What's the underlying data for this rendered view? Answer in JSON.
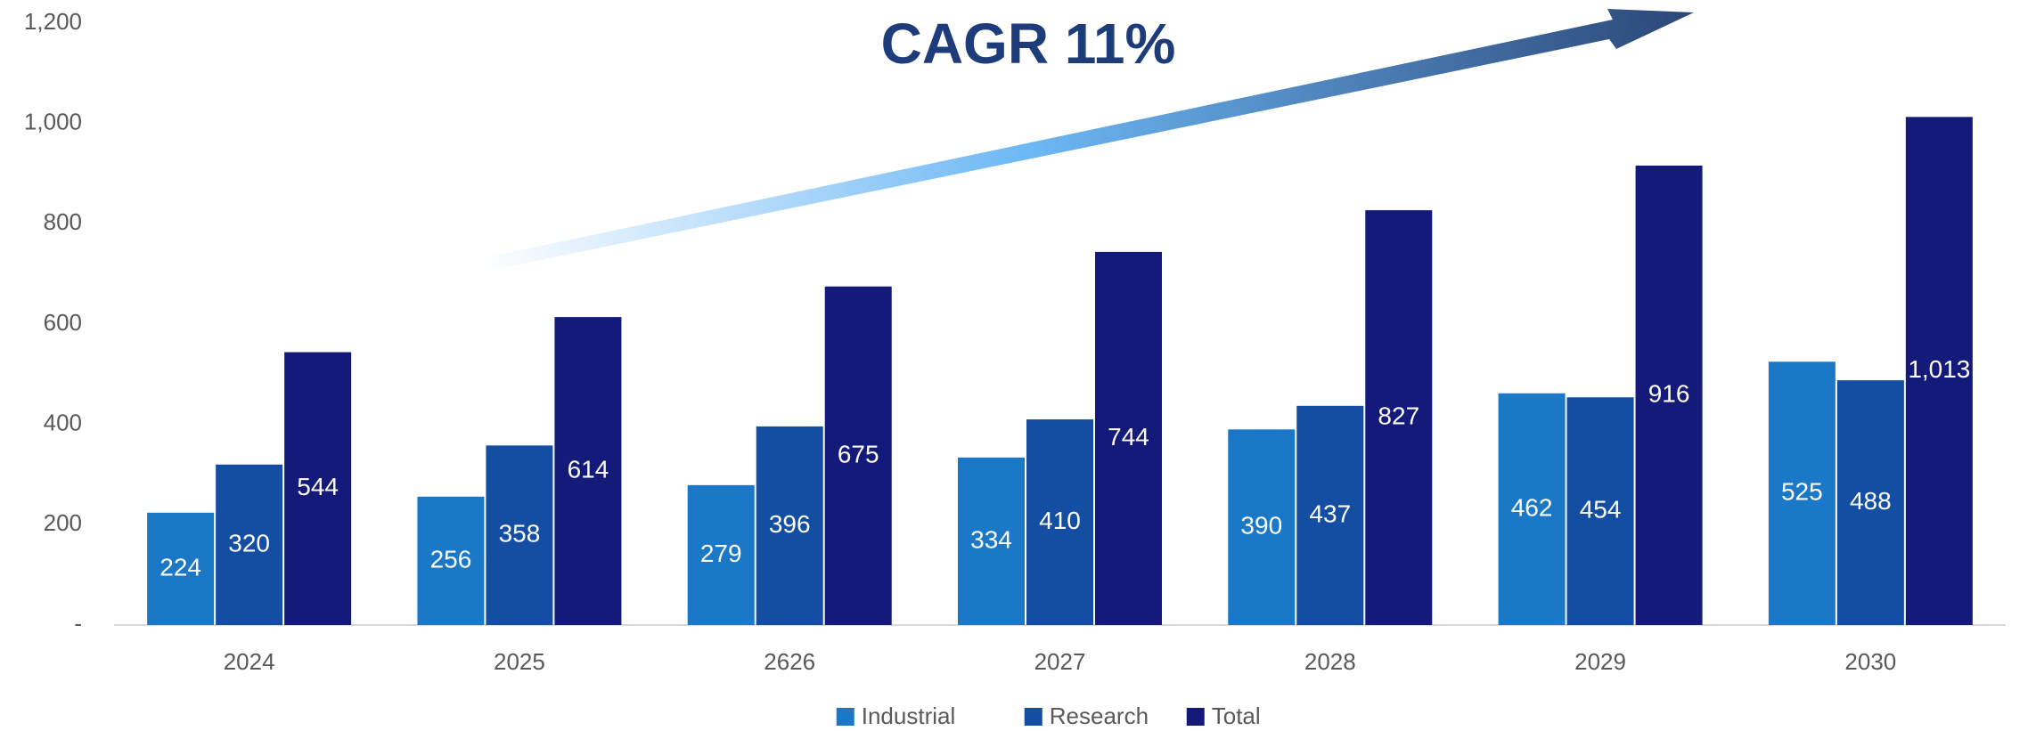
{
  "chart_data": {
    "type": "bar",
    "annotation": "CAGR 11%",
    "categories": [
      "2024",
      "2025",
      "2626",
      "2027",
      "2028",
      "2029",
      "2030"
    ],
    "series": [
      {
        "name": "Industrial",
        "color": "#1a78c6",
        "values": [
          224,
          256,
          279,
          334,
          390,
          462,
          525
        ]
      },
      {
        "name": "Research",
        "color": "#144ea3",
        "values": [
          320,
          358,
          396,
          410,
          437,
          454,
          488
        ]
      },
      {
        "name": "Total",
        "color": "#131a7a",
        "values": [
          544,
          614,
          675,
          744,
          827,
          916,
          1013
        ],
        "value_labels": [
          "544",
          "614",
          "675",
          "744",
          "827",
          "916",
          "1,013"
        ]
      }
    ],
    "ylim": [
      0,
      1200
    ],
    "yticks": [
      {
        "value": 0,
        "label": "-"
      },
      200,
      400,
      600,
      800,
      {
        "value": 1000,
        "label": "1,000"
      },
      {
        "value": 1200,
        "label": "1,200"
      }
    ],
    "grid": false,
    "legend": "bottom"
  }
}
